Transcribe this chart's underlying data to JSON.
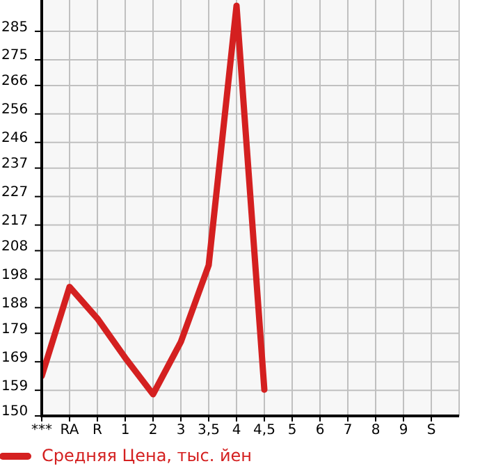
{
  "chart_data": {
    "type": "line",
    "categories": [
      "***",
      "RA",
      "R",
      "1",
      "2",
      "3",
      "3,5",
      "4",
      "4,5",
      "5",
      "6",
      "7",
      "8",
      "9",
      "S"
    ],
    "series": [
      {
        "name": "Средняя Цена, тыс. йен",
        "color": "#d42020",
        "values": [
          164,
          195.3,
          184.2,
          170.4,
          157.6,
          176,
          202.9,
          294,
          159.2,
          null,
          null,
          null,
          null,
          null,
          null
        ]
      }
    ],
    "ylim": [
      150,
      296
    ],
    "yticks": [
      150,
      159,
      169,
      179,
      188,
      198,
      208,
      217,
      227,
      237,
      246,
      256,
      266,
      275,
      285
    ],
    "grid": true,
    "legend": "bottom"
  }
}
